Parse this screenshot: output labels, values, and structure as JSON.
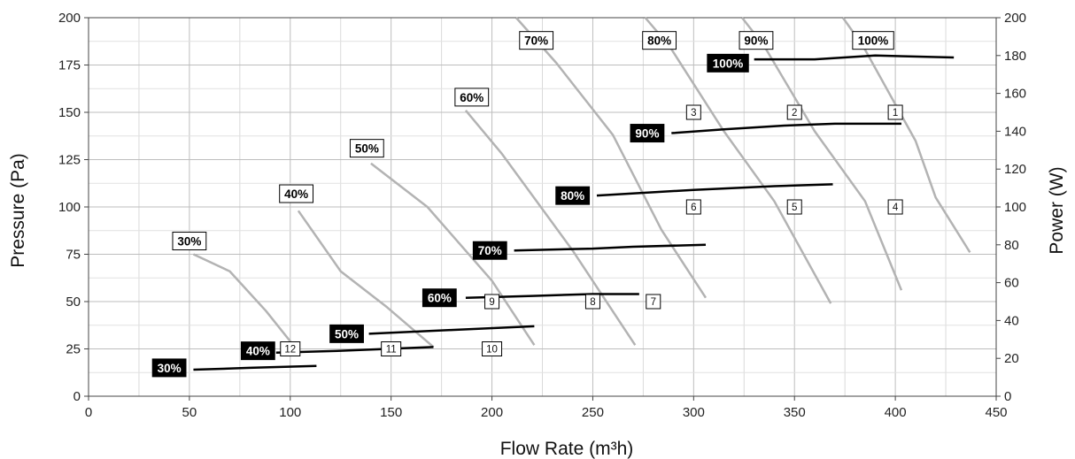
{
  "chart_data": {
    "type": "line",
    "title": "",
    "xlabel": "Flow Rate (m³h)",
    "ylabel": "Pressure (Pa)",
    "y2label": "Power (W)",
    "xlim": [
      0,
      450
    ],
    "ylim": [
      0,
      200
    ],
    "y2lim": [
      0,
      200
    ],
    "xticks": [
      0,
      50,
      100,
      150,
      200,
      250,
      300,
      350,
      400,
      450
    ],
    "yticks": [
      0,
      25,
      50,
      75,
      100,
      125,
      150,
      175,
      200
    ],
    "y2ticks": [
      0,
      20,
      40,
      60,
      80,
      100,
      120,
      140,
      160,
      180,
      200
    ],
    "grid": true,
    "colors": {
      "pressure": "#b3b3b3",
      "power": "#000000",
      "grid": "#c8c8c8"
    },
    "pressure_series": [
      {
        "name": "30%",
        "label_at": [
          50,
          82
        ],
        "points": [
          [
            52,
            75
          ],
          [
            70,
            66
          ],
          [
            88,
            45
          ],
          [
            103,
            25
          ]
        ]
      },
      {
        "name": "40%",
        "label_at": [
          103,
          107
        ],
        "points": [
          [
            104,
            98
          ],
          [
            125,
            66
          ],
          [
            148,
            47
          ],
          [
            171,
            26
          ]
        ]
      },
      {
        "name": "50%",
        "label_at": [
          138,
          131
        ],
        "points": [
          [
            140,
            123
          ],
          [
            168,
            100
          ],
          [
            200,
            61
          ],
          [
            221,
            27
          ]
        ]
      },
      {
        "name": "60%",
        "label_at": [
          190,
          158
        ],
        "points": [
          [
            187,
            151
          ],
          [
            205,
            128
          ],
          [
            240,
            77
          ],
          [
            271,
            27
          ]
        ]
      },
      {
        "name": "70%",
        "label_at": [
          222,
          188
        ],
        "points": [
          [
            212,
            200
          ],
          [
            232,
            176
          ],
          [
            260,
            138
          ],
          [
            284,
            88
          ],
          [
            306,
            52
          ]
        ]
      },
      {
        "name": "80%",
        "label_at": [
          283,
          188
        ],
        "points": [
          [
            276,
            200
          ],
          [
            288,
            185
          ],
          [
            315,
            140
          ],
          [
            340,
            103
          ],
          [
            368,
            49
          ]
        ]
      },
      {
        "name": "90%",
        "label_at": [
          331,
          188
        ],
        "points": [
          [
            324,
            200
          ],
          [
            335,
            185
          ],
          [
            360,
            140
          ],
          [
            385,
            103
          ],
          [
            403,
            56
          ]
        ]
      },
      {
        "name": "100%",
        "label_at": [
          389,
          188
        ],
        "points": [
          [
            374,
            200
          ],
          [
            384,
            185
          ],
          [
            410,
            135
          ],
          [
            420,
            105
          ],
          [
            437,
            76
          ]
        ]
      }
    ],
    "power_series": [
      {
        "name": "30%",
        "label_at": [
          40,
          15
        ],
        "points": [
          [
            52,
            14
          ],
          [
            80,
            15
          ],
          [
            113,
            16
          ]
        ]
      },
      {
        "name": "40%",
        "label_at": [
          84,
          24
        ],
        "points": [
          [
            93,
            23
          ],
          [
            125,
            24
          ],
          [
            171,
            26
          ]
        ]
      },
      {
        "name": "50%",
        "label_at": [
          128,
          33
        ],
        "points": [
          [
            139,
            33
          ],
          [
            180,
            35
          ],
          [
            221,
            37
          ]
        ]
      },
      {
        "name": "60%",
        "label_at": [
          174,
          52
        ],
        "points": [
          [
            187,
            52
          ],
          [
            220,
            53
          ],
          [
            250,
            54
          ],
          [
            273,
            54
          ]
        ]
      },
      {
        "name": "70%",
        "label_at": [
          199,
          77
        ],
        "points": [
          [
            211,
            77
          ],
          [
            250,
            78
          ],
          [
            270,
            79
          ],
          [
            306,
            80
          ]
        ]
      },
      {
        "name": "80%",
        "label_at": [
          240,
          106
        ],
        "points": [
          [
            252,
            106
          ],
          [
            300,
            109
          ],
          [
            340,
            111
          ],
          [
            369,
            112
          ]
        ]
      },
      {
        "name": "90%",
        "label_at": [
          277,
          139
        ],
        "points": [
          [
            289,
            139
          ],
          [
            315,
            141
          ],
          [
            345,
            143
          ],
          [
            370,
            144
          ],
          [
            403,
            144
          ]
        ]
      },
      {
        "name": "100%",
        "label_at": [
          317,
          176
        ],
        "points": [
          [
            330,
            178
          ],
          [
            360,
            178
          ],
          [
            390,
            180
          ],
          [
            429,
            179
          ]
        ]
      }
    ],
    "operating_points": [
      {
        "label": "1",
        "x": 400,
        "y": 150
      },
      {
        "label": "2",
        "x": 350,
        "y": 150
      },
      {
        "label": "3",
        "x": 300,
        "y": 150
      },
      {
        "label": "4",
        "x": 400,
        "y": 100
      },
      {
        "label": "5",
        "x": 350,
        "y": 100
      },
      {
        "label": "6",
        "x": 300,
        "y": 100
      },
      {
        "label": "7",
        "x": 280,
        "y": 50
      },
      {
        "label": "8",
        "x": 250,
        "y": 50
      },
      {
        "label": "9",
        "x": 200,
        "y": 50
      },
      {
        "label": "10",
        "x": 200,
        "y": 25
      },
      {
        "label": "11",
        "x": 150,
        "y": 25
      },
      {
        "label": "12",
        "x": 100,
        "y": 25
      }
    ]
  }
}
